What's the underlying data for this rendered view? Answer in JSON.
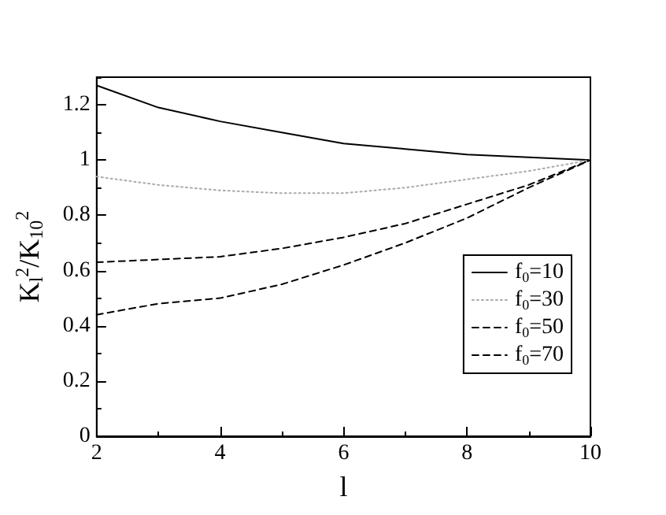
{
  "chart_data": {
    "type": "line",
    "xlabel": "l",
    "ylabel": "K$_{l}$$^{2}$/K$_{10}$$^{2}$",
    "x": [
      2,
      3,
      4,
      5,
      6,
      7,
      8,
      9,
      10
    ],
    "series": [
      {
        "name": "f$_{0}$=10",
        "color": "#000000",
        "line_style": "solid",
        "values": [
          1.27,
          1.19,
          1.14,
          1.1,
          1.06,
          1.04,
          1.02,
          1.01,
          1.0
        ]
      },
      {
        "name": "f$_{0}$=30",
        "color": "#aaaaaa",
        "line_style": "dotted",
        "values": [
          0.94,
          0.91,
          0.89,
          0.88,
          0.88,
          0.9,
          0.93,
          0.96,
          1.0
        ]
      },
      {
        "name": "f$_{0}$=50",
        "color": "#000000",
        "line_style": "dashed",
        "values": [
          0.63,
          0.64,
          0.65,
          0.68,
          0.72,
          0.77,
          0.84,
          0.91,
          1.0
        ]
      },
      {
        "name": "f$_{0}$=70",
        "color": "#000000",
        "line_style": "dashed",
        "values": [
          0.44,
          0.48,
          0.5,
          0.55,
          0.62,
          0.7,
          0.79,
          0.9,
          1.0
        ]
      }
    ],
    "xlim": [
      2,
      10
    ],
    "xticks": [
      2,
      4,
      6,
      8,
      10
    ],
    "ylim": [
      0,
      1.3
    ],
    "yticks": [
      0,
      0.2,
      0.4,
      0.6,
      0.8,
      1,
      1.2
    ],
    "grid": false,
    "legend": "right",
    "marker": "none"
  }
}
